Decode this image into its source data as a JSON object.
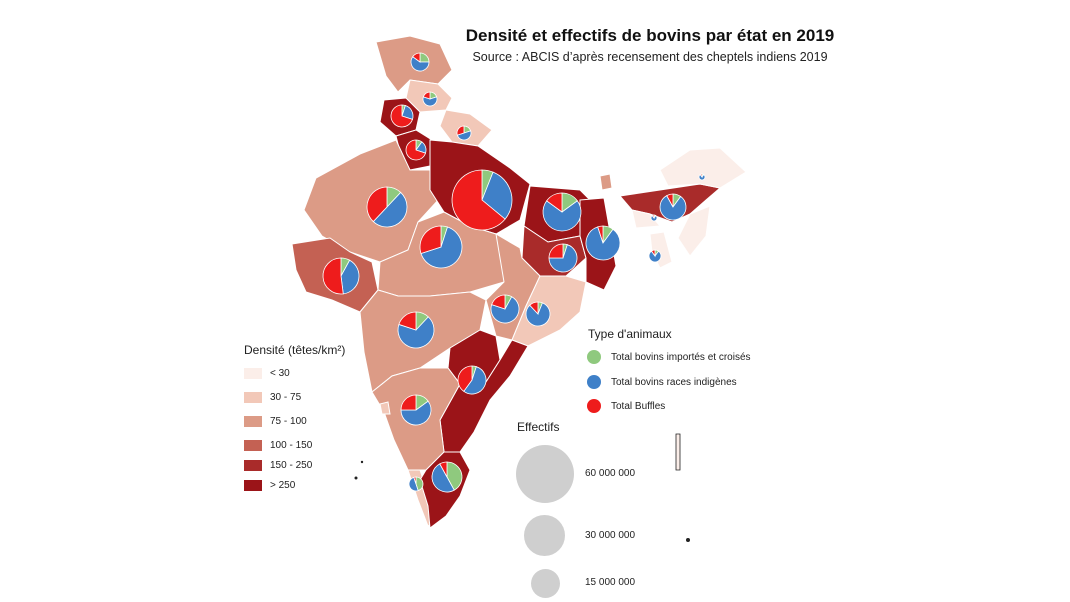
{
  "title": "Densité et effectifs de bovins par état en 2019",
  "subtitle": "Source : ABCIS d’après recensement des cheptels indiens 2019",
  "density_legend": {
    "title": "Densité (têtes/km²)",
    "classes": [
      {
        "label": "< 30",
        "color": "#fbeee9"
      },
      {
        "label": "30 - 75",
        "color": "#f2c8b8"
      },
      {
        "label": "75 - 100",
        "color": "#dc9b86"
      },
      {
        "label": "100 - 150",
        "color": "#c46153"
      },
      {
        "label": "150 - 250",
        "color": "#a92b2a"
      },
      {
        "label": "> 250",
        "color": "#9b1418"
      }
    ]
  },
  "type_legend": {
    "title": "Type d'animaux",
    "items": [
      {
        "label": "Total bovins importés et croisés",
        "color": "#8fc97e"
      },
      {
        "label": "Total bovins races indigènes",
        "color": "#3f80c8"
      },
      {
        "label": "Total Buffles",
        "color": "#ee1c1c"
      }
    ]
  },
  "size_legend": {
    "title": "Effectifs",
    "items": [
      {
        "label": "60 000 000",
        "value": 60000000
      },
      {
        "label": "30 000 000",
        "value": 30000000
      },
      {
        "label": "15 000 000",
        "value": 15000000
      }
    ]
  },
  "colors": {
    "state_border": "#ffffff",
    "pie_border": "#ffffff"
  }
}
